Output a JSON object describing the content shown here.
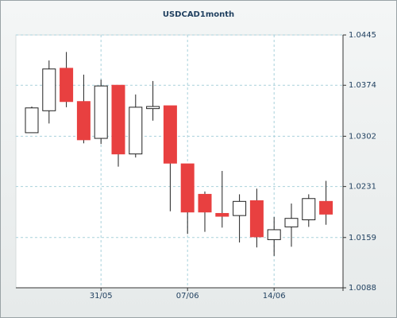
{
  "chart_data": {
    "type": "candlestick",
    "title": "USDCAD1month",
    "x": [
      null,
      null,
      null,
      null,
      "31/05",
      null,
      null,
      null,
      null,
      "07/06",
      null,
      null,
      null,
      null,
      "14/06",
      null,
      null,
      null
    ],
    "open": [
      1.0307,
      1.0338,
      1.0398,
      1.0351,
      1.0299,
      1.0374,
      1.0277,
      1.0341,
      1.0345,
      1.0263,
      1.022,
      1.0193,
      1.019,
      1.0211,
      1.0156,
      1.0174,
      1.0184,
      1.021
    ],
    "high": [
      1.0344,
      1.0409,
      1.0421,
      1.0389,
      1.0382,
      1.0374,
      1.0361,
      1.038,
      1.0345,
      1.0263,
      1.0224,
      1.0253,
      1.022,
      1.0228,
      1.0188,
      1.0207,
      1.022,
      1.0239
    ],
    "low": [
      1.0307,
      1.032,
      1.0343,
      1.0292,
      1.0291,
      1.0259,
      1.0272,
      1.0324,
      1.0196,
      1.0164,
      1.0167,
      1.0173,
      1.0152,
      1.0145,
      1.0133,
      1.0146,
      1.0174,
      1.0177
    ],
    "close": [
      1.0342,
      1.0397,
      1.0351,
      1.0297,
      1.0373,
      1.0277,
      1.0343,
      1.0344,
      1.0264,
      1.0195,
      1.0195,
      1.0189,
      1.021,
      1.016,
      1.017,
      1.0186,
      1.0214,
      1.0192
    ],
    "up_color": "#ffffff",
    "down_color": "#e84040",
    "ylim": [
      1.0088,
      1.0445
    ],
    "yticks": [
      1.0088,
      1.0159,
      1.0231,
      1.0302,
      1.0374,
      1.0445
    ],
    "grid": true
  }
}
